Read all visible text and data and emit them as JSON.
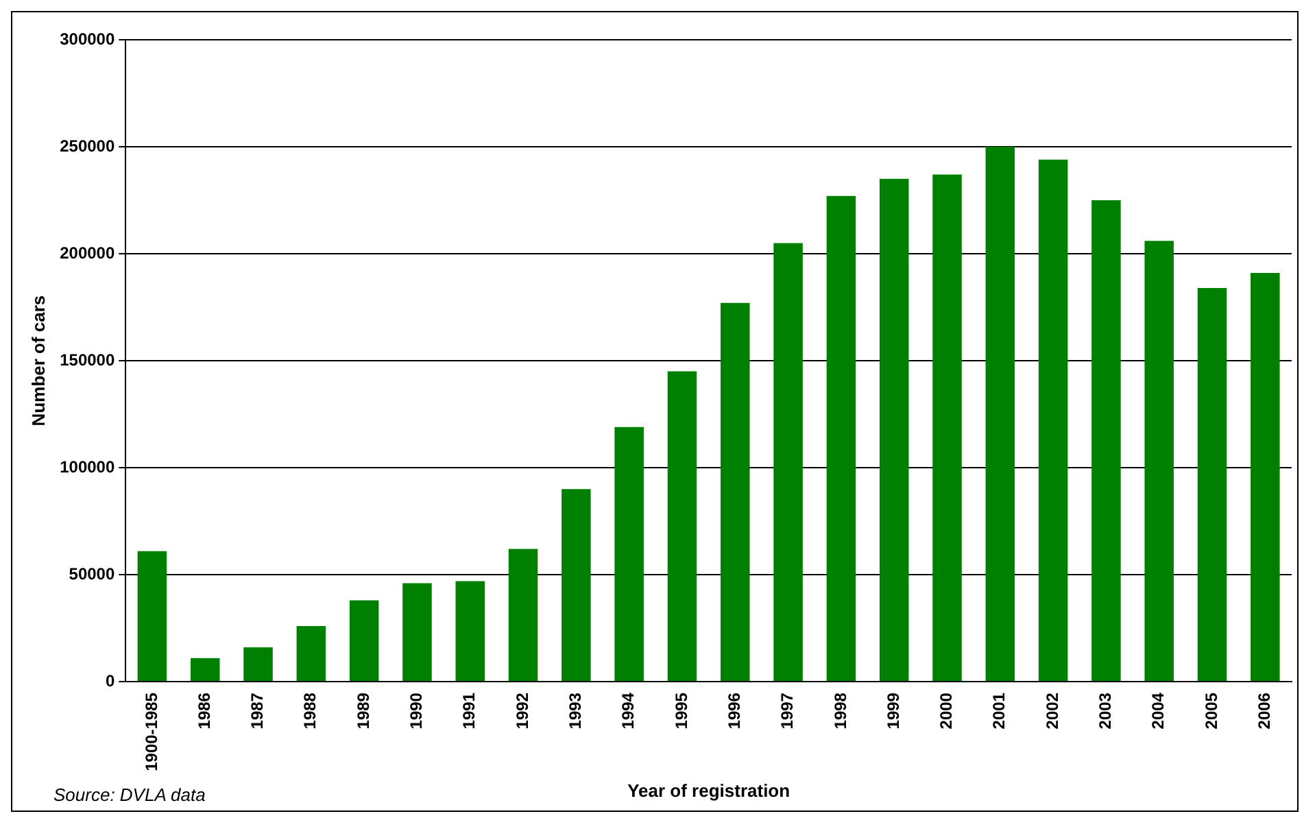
{
  "chart_data": {
    "type": "bar",
    "xlabel": "Year of registration",
    "ylabel": "Number of cars",
    "categories": [
      "1900-1985",
      "1986",
      "1987",
      "1988",
      "1989",
      "1990",
      "1991",
      "1992",
      "1993",
      "1994",
      "1995",
      "1996",
      "1997",
      "1998",
      "1999",
      "2000",
      "2001",
      "2002",
      "2003",
      "2004",
      "2005",
      "2006"
    ],
    "values": [
      61000,
      11000,
      16000,
      26000,
      38000,
      46000,
      47000,
      62000,
      90000,
      119000,
      145000,
      177000,
      205000,
      227000,
      235000,
      237000,
      250000,
      244000,
      225000,
      206000,
      184000,
      191000
    ],
    "color": "#008000",
    "ylim": [
      0,
      300000
    ],
    "yticks": [
      0,
      50000,
      100000,
      150000,
      200000,
      250000,
      300000
    ],
    "grid": "y",
    "legend": false,
    "annotations": [
      "Source: DVLA data"
    ]
  }
}
